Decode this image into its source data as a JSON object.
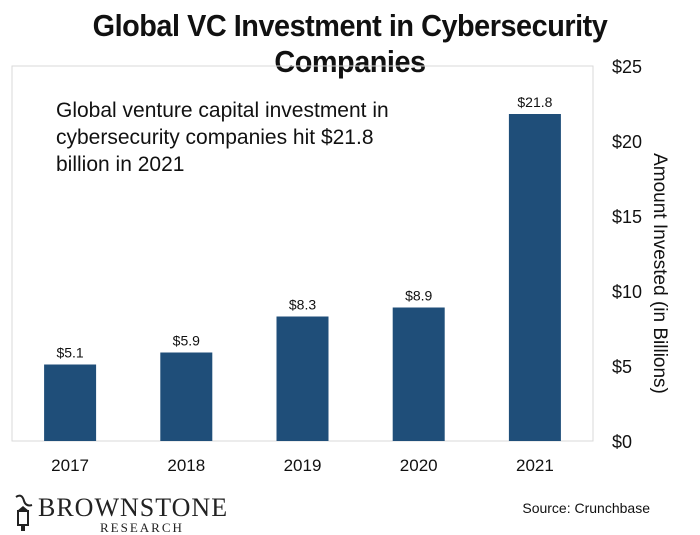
{
  "chart_data": {
    "type": "bar",
    "title": "Global VC Investment in Cybersecurity Companies",
    "categories": [
      "2017",
      "2018",
      "2019",
      "2020",
      "2021"
    ],
    "values": [
      5.1,
      5.9,
      8.3,
      8.9,
      21.8
    ],
    "data_labels": [
      "$5.1",
      "$5.9",
      "$8.3",
      "$8.9",
      "$21.8"
    ],
    "ylabel": "Amount Invested (in Billions)",
    "ylim": [
      0,
      25
    ],
    "yticks": [
      0,
      5,
      10,
      15,
      20,
      25
    ],
    "ytick_labels": [
      "$0",
      "$5",
      "$10",
      "$15",
      "$20",
      "$25"
    ],
    "y_axis_side": "right",
    "grid": false,
    "bar_color": "#1f4e79",
    "annotation": "Global venture capital investment in cybersecurity companies hit $21.8 billion in 2021"
  },
  "footer": {
    "logo_main": "BROWNSTONE",
    "logo_sub": "RESEARCH",
    "source": "Source: Crunchbase"
  }
}
